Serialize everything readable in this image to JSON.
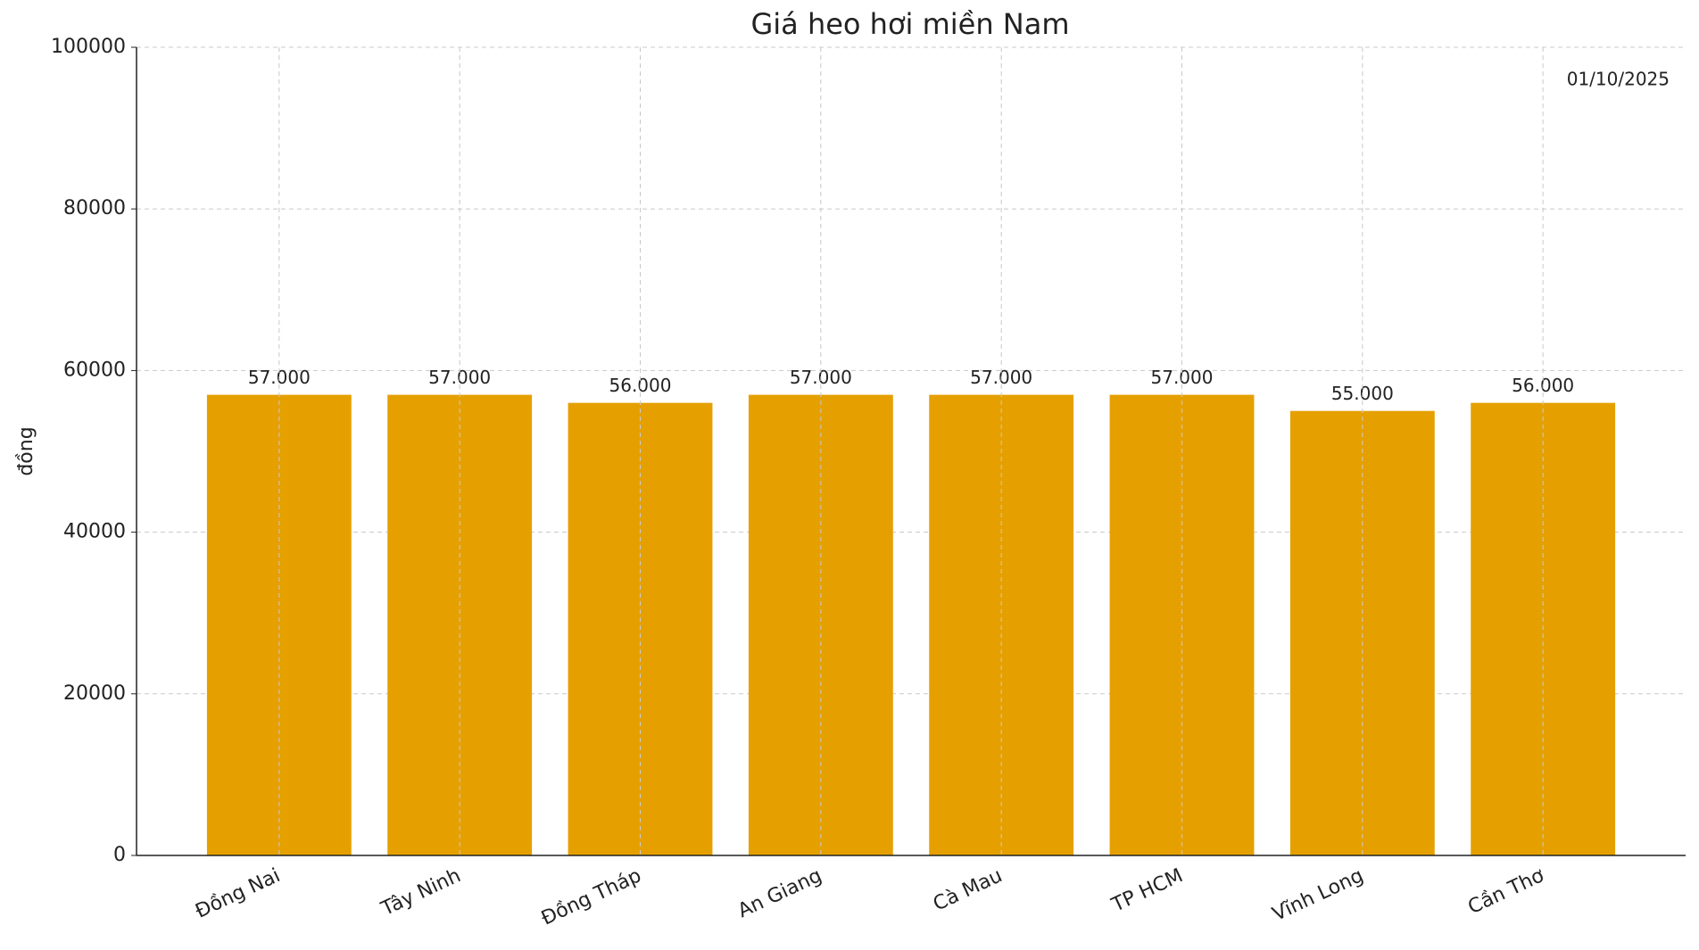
{
  "chart_data": {
    "type": "bar",
    "title": "Giá heo hơi miền Nam",
    "ylabel": "đồng",
    "annotation": "01/10/2025",
    "categories": [
      "Đồng Nai",
      "Tây Ninh",
      "Đồng Tháp",
      "An Giang",
      "Cà Mau",
      "TP HCM",
      "Vĩnh Long",
      "Cần Thơ"
    ],
    "values": [
      57000,
      57000,
      56000,
      57000,
      57000,
      57000,
      55000,
      56000
    ],
    "value_labels": [
      "57.000",
      "57.000",
      "56.000",
      "57.000",
      "57.000",
      "57.000",
      "55.000",
      "56.000"
    ],
    "color": "#e5a000",
    "ylim": [
      0,
      100000
    ],
    "yticks": [
      0,
      20000,
      40000,
      60000,
      80000,
      100000
    ],
    "grid": true
  }
}
